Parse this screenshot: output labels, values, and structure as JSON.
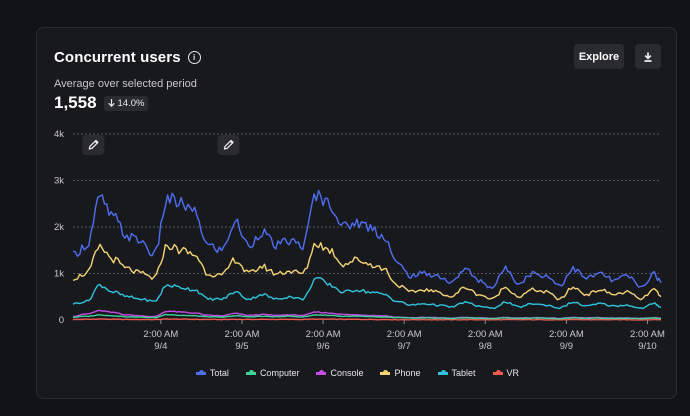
{
  "header": {
    "title": "Concurrent users",
    "subtitle": "Average over selected period",
    "metric_value": "1,558",
    "delta_label": "14.0%",
    "explore_label": "Explore"
  },
  "icons": {
    "info": "info-icon",
    "download": "download-icon",
    "delta": "arrow-down-icon",
    "annotation": "pencil-icon"
  },
  "colors": {
    "Total": "#4e6ef2",
    "Computer": "#3fd39a",
    "Console": "#c54ce6",
    "Phone": "#f7d374",
    "Tablet": "#2fc3dd",
    "VR": "#ef5a50"
  },
  "chart_data": {
    "type": "line",
    "title": "Concurrent users",
    "ylim": [
      0,
      4000
    ],
    "yticks": [
      0,
      1000,
      2000,
      3000,
      4000
    ],
    "ytick_labels": [
      "0",
      "1k",
      "2k",
      "3k",
      "4k"
    ],
    "xlim_hours": [
      -24,
      150
    ],
    "xticks": [
      {
        "time": "2:00 AM",
        "date": "9/4"
      },
      {
        "time": "2:00 AM",
        "date": "9/5"
      },
      {
        "time": "2:00 AM",
        "date": "9/6"
      },
      {
        "time": "2:00 AM",
        "date": "9/7"
      },
      {
        "time": "2:00 AM",
        "date": "9/8"
      },
      {
        "time": "2:00 AM",
        "date": "9/9"
      },
      {
        "time": "2:00 AM",
        "date": "9/10"
      }
    ],
    "annotations": [
      {
        "hour": -18
      },
      {
        "hour": 22
      }
    ],
    "x": [
      -24,
      -20,
      -16,
      -12,
      -8,
      -4,
      0,
      4,
      8,
      12,
      16,
      20,
      24,
      28,
      32,
      36,
      40,
      44,
      48,
      52,
      56,
      60,
      64,
      68,
      72,
      76,
      80,
      84,
      88,
      92,
      96,
      100,
      104,
      108,
      112,
      116,
      120,
      124,
      128,
      132,
      136,
      140,
      144,
      148,
      150
    ],
    "series": [
      {
        "name": "Total",
        "values": [
          1400,
          1600,
          2600,
          2200,
          1800,
          1700,
          1400,
          2600,
          2500,
          2300,
          1600,
          1500,
          2100,
          1600,
          1900,
          1600,
          1700,
          1600,
          2700,
          2500,
          2000,
          2100,
          2000,
          1800,
          1200,
          950,
          1000,
          950,
          800,
          1100,
          850,
          700,
          1100,
          800,
          1000,
          950,
          750,
          1100,
          900,
          1000,
          850,
          950,
          700,
          1000,
          800
        ]
      },
      {
        "name": "Computer",
        "values": [
          60,
          80,
          110,
          90,
          70,
          60,
          50,
          120,
          100,
          90,
          70,
          60,
          90,
          70,
          80,
          70,
          80,
          70,
          110,
          100,
          80,
          80,
          70,
          60,
          50,
          40,
          45,
          40,
          35,
          45,
          40,
          30,
          45,
          35,
          40,
          40,
          30,
          45,
          35,
          40,
          35,
          40,
          30,
          45,
          35
        ]
      },
      {
        "name": "Console",
        "values": [
          80,
          130,
          200,
          160,
          110,
          90,
          70,
          190,
          170,
          150,
          100,
          90,
          140,
          100,
          120,
          100,
          110,
          100,
          170,
          150,
          120,
          110,
          100,
          90,
          60,
          50,
          55,
          50,
          40,
          55,
          45,
          35,
          55,
          40,
          50,
          45,
          35,
          55,
          45,
          50,
          40,
          45,
          35,
          50,
          40
        ]
      },
      {
        "name": "Phone",
        "values": [
          900,
          1000,
          1550,
          1300,
          1100,
          1000,
          900,
          1600,
          1500,
          1400,
          1000,
          950,
          1300,
          1000,
          1150,
          1000,
          1050,
          1000,
          1650,
          1500,
          1200,
          1300,
          1200,
          1100,
          750,
          600,
          650,
          600,
          500,
          700,
          550,
          450,
          700,
          500,
          650,
          600,
          450,
          700,
          550,
          650,
          550,
          600,
          450,
          650,
          500
        ]
      },
      {
        "name": "Tablet",
        "values": [
          350,
          400,
          750,
          600,
          500,
          450,
          400,
          750,
          700,
          650,
          450,
          450,
          600,
          450,
          550,
          450,
          500,
          450,
          900,
          750,
          600,
          650,
          600,
          550,
          400,
          320,
          350,
          320,
          280,
          380,
          300,
          250,
          380,
          280,
          350,
          320,
          260,
          380,
          300,
          350,
          300,
          320,
          250,
          350,
          280
        ]
      },
      {
        "name": "VR",
        "values": [
          10,
          15,
          20,
          15,
          12,
          10,
          8,
          20,
          18,
          15,
          12,
          10,
          15,
          12,
          14,
          12,
          13,
          12,
          18,
          16,
          14,
          14,
          12,
          10,
          8,
          7,
          8,
          7,
          6,
          8,
          7,
          5,
          8,
          6,
          7,
          7,
          5,
          8,
          6,
          7,
          6,
          7,
          5,
          8,
          6
        ]
      }
    ]
  }
}
